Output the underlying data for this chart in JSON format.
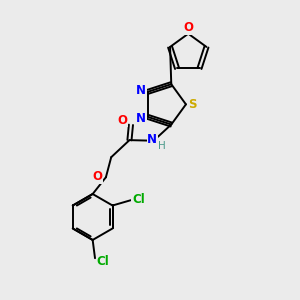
{
  "bg_color": "#ebebeb",
  "atom_colors": {
    "C": "#000000",
    "H": "#4a9a8a",
    "N": "#0000ff",
    "O": "#ff0000",
    "S": "#ccaa00",
    "Cl": "#00aa00"
  },
  "figsize": [
    3.0,
    3.0
  ],
  "dpi": 100
}
